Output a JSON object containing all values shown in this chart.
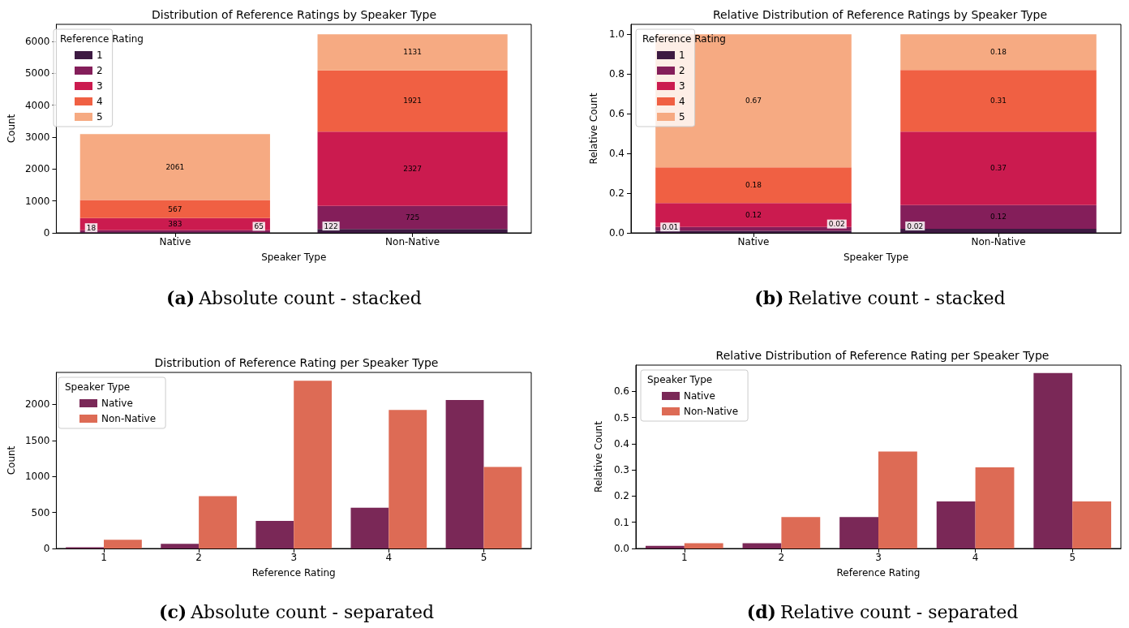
{
  "chart_data": [
    {
      "type": "bar",
      "title": "Distribution of Reference Ratings by Speaker Type",
      "xlabel": "Speaker Type",
      "ylabel": "Count",
      "legend_title": "Reference Rating",
      "annotations": [
        "(a) Absolute count - stacked"
      ],
      "categories": [
        "Native",
        "Non-Native"
      ],
      "stacked": true,
      "data_labels": true,
      "legend": "top left",
      "ylim": [
        0,
        6537
      ],
      "yticks": [
        0,
        1000,
        2000,
        3000,
        4000,
        5000,
        6000
      ],
      "series": [
        {
          "name": "1",
          "color": "#3d1a42",
          "values": [
            18,
            122
          ]
        },
        {
          "name": "2",
          "color": "#841e5a",
          "values": [
            65,
            725
          ]
        },
        {
          "name": "3",
          "color": "#cb1b4f",
          "values": [
            383,
            2327
          ]
        },
        {
          "name": "4",
          "color": "#f06043",
          "values": [
            567,
            1921
          ]
        },
        {
          "name": "5",
          "color": "#f6aa82",
          "values": [
            2061,
            1131
          ]
        }
      ]
    },
    {
      "type": "bar",
      "title": "Relative Distribution of Reference Ratings by Speaker Type",
      "xlabel": "Speaker Type",
      "ylabel": "Relative Count",
      "legend_title": "Reference Rating",
      "annotations": [
        "(b) Relative count - stacked"
      ],
      "categories": [
        "Native",
        "Non-Native"
      ],
      "stacked": true,
      "data_labels": true,
      "legend": "top left",
      "ylim": [
        0,
        1.05
      ],
      "yticks": [
        {
          "value": 0,
          "label": "0.0"
        },
        {
          "value": 0.2,
          "label": "0.2"
        },
        {
          "value": 0.4,
          "label": "0.4"
        },
        {
          "value": 0.6,
          "label": "0.6"
        },
        {
          "value": 0.8,
          "label": "0.8"
        },
        {
          "value": 1,
          "label": "1.0"
        }
      ],
      "series": [
        {
          "name": "1",
          "color": "#3d1a42",
          "values": [
            0.01,
            0.02
          ]
        },
        {
          "name": "2",
          "color": "#841e5a",
          "values": [
            0.02,
            0.12
          ]
        },
        {
          "name": "3",
          "color": "#cb1b4f",
          "values": [
            0.12,
            0.37
          ]
        },
        {
          "name": "4",
          "color": "#f06043",
          "values": [
            0.18,
            0.31
          ]
        },
        {
          "name": "5",
          "color": "#f6aa82",
          "values": [
            0.67,
            0.18
          ]
        }
      ]
    },
    {
      "type": "bar",
      "title": "Distribution of Reference Rating per Speaker Type",
      "xlabel": "Reference Rating",
      "ylabel": "Count",
      "legend_title": "Speaker Type",
      "annotations": [
        "(c) Absolute count - separated"
      ],
      "categories": [
        "1",
        "2",
        "3",
        "4",
        "5"
      ],
      "legend": "top left",
      "ylim": [
        0,
        2443
      ],
      "yticks": [
        0,
        500,
        1000,
        1500,
        2000
      ],
      "series": [
        {
          "name": "Native",
          "color": "#7a2857",
          "values": [
            18,
            65,
            383,
            567,
            2061
          ]
        },
        {
          "name": "Non-Native",
          "color": "#dd6b55",
          "values": [
            122,
            725,
            2327,
            1921,
            1131
          ]
        }
      ]
    },
    {
      "type": "bar",
      "title": "Relative Distribution of Reference Rating per Speaker Type",
      "xlabel": "Reference Rating",
      "ylabel": "Relative Count",
      "legend_title": "Speaker Type",
      "annotations": [
        "(d) Relative count - separated"
      ],
      "categories": [
        "1",
        "2",
        "3",
        "4",
        "5"
      ],
      "legend": "top left",
      "ylim": [
        0,
        0.7
      ],
      "yticks": [
        {
          "value": 0,
          "label": "0.0"
        },
        {
          "value": 0.1,
          "label": "0.1"
        },
        {
          "value": 0.2,
          "label": "0.2"
        },
        {
          "value": 0.3,
          "label": "0.3"
        },
        {
          "value": 0.4,
          "label": "0.4"
        },
        {
          "value": 0.5,
          "label": "0.5"
        },
        {
          "value": 0.6,
          "label": "0.6"
        }
      ],
      "series": [
        {
          "name": "Native",
          "color": "#7a2857",
          "values": [
            0.01,
            0.02,
            0.12,
            0.18,
            0.67
          ]
        },
        {
          "name": "Non-Native",
          "color": "#dd6b55",
          "values": [
            0.02,
            0.12,
            0.37,
            0.31,
            0.18
          ]
        }
      ]
    }
  ]
}
